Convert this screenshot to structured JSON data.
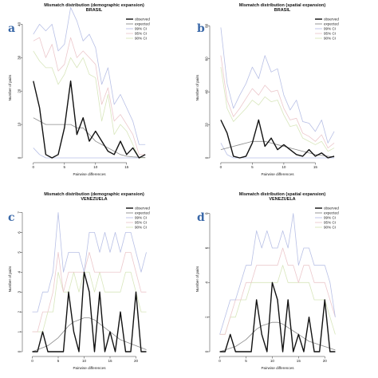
{
  "figure": {
    "panel_count": 4
  },
  "legend_labels": [
    "observed",
    "expected",
    "99% CI",
    "95% CI",
    "90% CI"
  ],
  "chart_data": [
    {
      "type": "line",
      "panel_label": "a",
      "title": "Mismatch distribution (demographic expansion)",
      "subtitle": "BRASIL",
      "xlabel": "Pairwise differences",
      "ylabel": "Number of pairs",
      "xlim": [
        -1,
        19
      ],
      "ylim": [
        0,
        42
      ],
      "xticks": [
        0,
        5,
        10,
        15
      ],
      "yticks": [
        0,
        10,
        20,
        30,
        40
      ],
      "grid": false,
      "legend_position": "top-right",
      "x": [
        0,
        1,
        2,
        3,
        4,
        5,
        6,
        7,
        8,
        9,
        10,
        11,
        12,
        13,
        14,
        15,
        16,
        17,
        18
      ],
      "series": [
        {
          "name": "observed",
          "color": "#111111",
          "width": 1.4,
          "values": [
            23,
            15,
            1,
            0,
            1,
            9,
            23,
            7,
            12,
            5,
            8,
            5,
            2,
            1,
            5,
            1,
            3,
            0,
            1
          ]
        },
        {
          "name": "expected",
          "color": "#8a8a8a",
          "width": 0.8,
          "values": [
            12,
            11,
            10,
            10,
            10,
            10,
            10,
            9,
            9,
            7,
            5,
            4,
            3,
            2,
            1,
            0.5,
            0.3,
            0.2,
            0.1
          ]
        },
        {
          "name": "99% CI",
          "color": "#b8c0e6",
          "width": 0.8,
          "values": [
            37,
            40,
            38,
            40,
            32,
            34,
            45,
            41,
            35,
            37,
            33,
            22,
            27,
            16,
            19,
            15,
            11,
            4,
            4
          ]
        },
        {
          "name": "95% CI",
          "color": "#ecc8cc",
          "width": 0.8,
          "values": [
            35,
            36,
            30,
            34,
            26,
            28,
            36,
            30,
            32,
            30,
            28,
            16,
            21,
            11,
            13,
            10,
            7,
            1,
            1
          ]
        },
        {
          "name": "90% CI",
          "color": "#d8e6bc",
          "width": 0.8,
          "values": [
            32,
            29,
            27,
            27,
            22,
            25,
            30,
            27,
            30,
            25,
            24,
            11,
            19,
            7,
            10,
            8,
            4,
            0,
            0
          ]
        },
        {
          "name": "99% CI lower",
          "color": "#b8c0e6",
          "width": 0.8,
          "values": [
            3,
            1,
            0,
            0,
            0,
            0,
            0,
            0,
            0,
            0,
            0,
            0,
            0,
            0,
            0,
            0,
            0,
            0,
            0
          ]
        }
      ]
    },
    {
      "type": "line",
      "panel_label": "b",
      "title": "Mismatch distribution (spatial expansion)",
      "subtitle": "BRASIL",
      "xlabel": "Pairwise differences",
      "ylabel": "Number of pairs",
      "xlim": [
        -1,
        19
      ],
      "ylim": [
        0,
        85
      ],
      "xticks": [
        0,
        5,
        10,
        15
      ],
      "yticks": [
        0,
        20,
        40,
        60,
        80
      ],
      "grid": false,
      "legend_position": "top-right",
      "x": [
        0,
        1,
        2,
        3,
        4,
        5,
        6,
        7,
        8,
        9,
        10,
        11,
        12,
        13,
        14,
        15,
        16,
        17,
        18
      ],
      "series": [
        {
          "name": "observed",
          "color": "#111111",
          "width": 1.4,
          "values": [
            23,
            15,
            1,
            0,
            1,
            9,
            23,
            7,
            12,
            5,
            8,
            5,
            2,
            1,
            5,
            1,
            3,
            0,
            1
          ]
        },
        {
          "name": "expected",
          "color": "#8a8a8a",
          "width": 0.8,
          "values": [
            5,
            6,
            7,
            8,
            9,
            10,
            10,
            10,
            9,
            8,
            7,
            6,
            5,
            4,
            3,
            2,
            1.5,
            1,
            0.5
          ]
        },
        {
          "name": "99% CI",
          "color": "#b8c0e6",
          "width": 0.8,
          "values": [
            79,
            45,
            30,
            38,
            45,
            55,
            48,
            62,
            52,
            54,
            38,
            29,
            35,
            22,
            21,
            16,
            23,
            9,
            16
          ]
        },
        {
          "name": "95% CI",
          "color": "#ecc8cc",
          "width": 0.8,
          "values": [
            62,
            35,
            25,
            30,
            36,
            42,
            38,
            44,
            40,
            41,
            30,
            23,
            24,
            15,
            13,
            10,
            14,
            6,
            9
          ]
        },
        {
          "name": "90% CI",
          "color": "#d8e6bc",
          "width": 0.8,
          "values": [
            55,
            30,
            22,
            26,
            30,
            35,
            32,
            37,
            34,
            35,
            26,
            19,
            20,
            12,
            10,
            8,
            10,
            4,
            6
          ]
        },
        {
          "name": "99% CI lower",
          "color": "#b8c0e6",
          "width": 0.8,
          "values": [
            9,
            2,
            0,
            0,
            0,
            0,
            0,
            0,
            0,
            0,
            0,
            0,
            0,
            0,
            0,
            0,
            0,
            0,
            0
          ]
        }
      ]
    },
    {
      "type": "line",
      "panel_label": "c",
      "title": "Mismatch distribution (demographic expansion)",
      "subtitle": "VENEZUELA",
      "xlabel": "Pairwise differences",
      "ylabel": "Number of pairs",
      "xlim": [
        -1,
        23
      ],
      "ylim": [
        0,
        7.3
      ],
      "xticks": [
        0,
        5,
        10,
        15,
        20
      ],
      "yticks": [
        0,
        1,
        2,
        3,
        4,
        5,
        6,
        7
      ],
      "grid": false,
      "legend_position": "top-right",
      "x": [
        0,
        1,
        2,
        3,
        4,
        5,
        6,
        7,
        8,
        9,
        10,
        11,
        12,
        13,
        14,
        15,
        16,
        17,
        18,
        19,
        20,
        21,
        22
      ],
      "series": [
        {
          "name": "observed",
          "color": "#111111",
          "width": 1.4,
          "values": [
            0,
            0,
            1,
            0,
            0,
            0,
            0,
            3,
            1,
            0,
            4,
            3,
            0,
            3,
            0,
            1,
            0,
            2,
            0,
            0,
            3,
            0,
            0
          ]
        },
        {
          "name": "expected",
          "color": "#8a8a8a",
          "width": 0.8,
          "values": [
            0,
            0.1,
            0.2,
            0.3,
            0.5,
            0.7,
            1,
            1.3,
            1.5,
            1.6,
            1.7,
            1.7,
            1.6,
            1.4,
            1.2,
            1,
            0.8,
            0.6,
            0.5,
            0.4,
            0.3,
            0.2,
            0.1
          ]
        },
        {
          "name": "99% CI",
          "color": "#b8c0e6",
          "width": 0.8,
          "values": [
            2,
            2,
            3,
            3,
            4,
            7,
            4,
            5,
            5,
            5,
            4,
            6,
            6,
            5,
            6,
            5,
            6,
            5,
            6,
            6,
            5,
            4,
            5
          ]
        },
        {
          "name": "95% CI",
          "color": "#ecc8cc",
          "width": 0.8,
          "values": [
            1,
            1,
            2,
            2,
            3,
            5,
            3,
            4,
            4,
            4,
            4,
            5,
            4,
            4,
            4,
            4,
            4,
            4,
            5,
            5,
            4,
            3,
            3
          ]
        },
        {
          "name": "90% CI",
          "color": "#d8e6bc",
          "width": 0.8,
          "values": [
            1,
            1,
            1,
            2,
            2,
            4,
            3,
            3,
            4,
            3,
            4,
            4,
            3,
            4,
            3,
            3,
            3,
            3,
            4,
            4,
            3,
            2,
            2
          ]
        }
      ]
    },
    {
      "type": "line",
      "panel_label": "d",
      "title": "Mismatch distribution (spatial expansion)",
      "subtitle": "VENEZUELA",
      "xlabel": "Pairwise differences",
      "ylabel": "Number of pairs",
      "xlim": [
        -1,
        23
      ],
      "ylim": [
        0,
        8.4
      ],
      "xticks": [
        0,
        5,
        10,
        15,
        20
      ],
      "yticks": [
        0,
        2,
        4,
        6,
        8
      ],
      "grid": false,
      "legend_position": "top-right",
      "x": [
        0,
        1,
        2,
        3,
        4,
        5,
        6,
        7,
        8,
        9,
        10,
        11,
        12,
        13,
        14,
        15,
        16,
        17,
        18,
        19,
        20,
        21,
        22
      ],
      "series": [
        {
          "name": "observed",
          "color": "#111111",
          "width": 1.4,
          "values": [
            0,
            0,
            1,
            0,
            0,
            0,
            0,
            3,
            1,
            0,
            4,
            3,
            0,
            3,
            0,
            1,
            0,
            2,
            0,
            0,
            3,
            0,
            0
          ]
        },
        {
          "name": "expected",
          "color": "#8a8a8a",
          "width": 0.8,
          "values": [
            0,
            0.1,
            0.2,
            0.3,
            0.5,
            0.7,
            1,
            1.3,
            1.5,
            1.6,
            1.7,
            1.7,
            1.6,
            1.4,
            1.2,
            1,
            0.8,
            0.6,
            0.5,
            0.4,
            0.3,
            0.2,
            0.1
          ]
        },
        {
          "name": "99% CI",
          "color": "#b8c0e6",
          "width": 0.8,
          "values": [
            1,
            2,
            3,
            3,
            4,
            5,
            5,
            7,
            6,
            7,
            6,
            6,
            7,
            6,
            8,
            5,
            6,
            6,
            5,
            5,
            5,
            4,
            2
          ]
        },
        {
          "name": "95% CI",
          "color": "#ecc8cc",
          "width": 0.8,
          "values": [
            1,
            1,
            2,
            3,
            3,
            4,
            4,
            5,
            5,
            5,
            5,
            5,
            6,
            5,
            5,
            4,
            5,
            5,
            4,
            4,
            4,
            3,
            2
          ]
        },
        {
          "name": "90% CI",
          "color": "#d8e6bc",
          "width": 0.8,
          "values": [
            1,
            1,
            2,
            2,
            3,
            3,
            4,
            4,
            4,
            4,
            4,
            4,
            5,
            4,
            4,
            4,
            4,
            4,
            3,
            3,
            3,
            2,
            1
          ]
        }
      ]
    }
  ]
}
